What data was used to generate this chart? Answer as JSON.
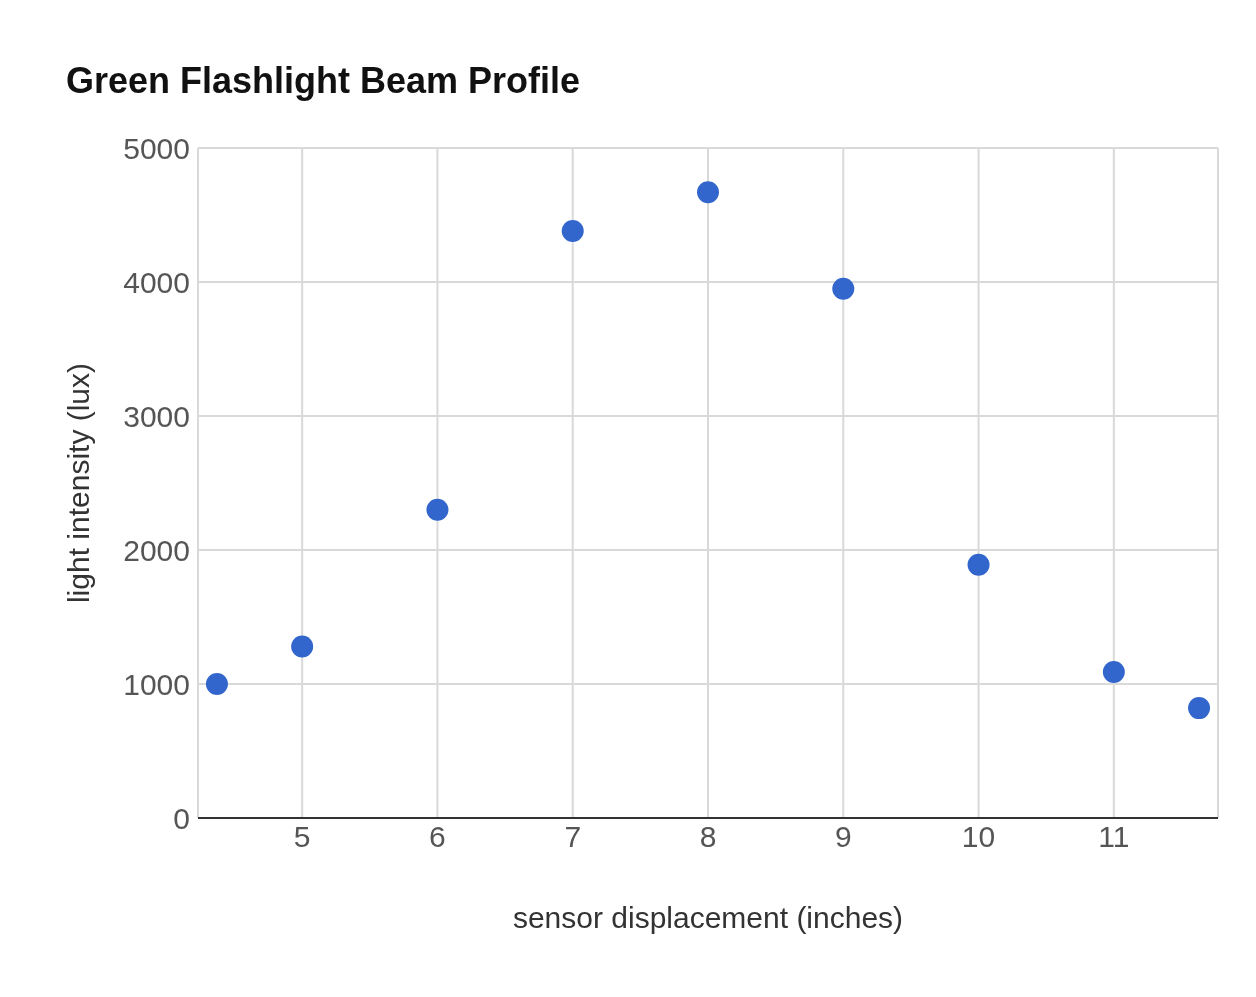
{
  "chart_data": {
    "type": "scatter",
    "title": "Green Flashlight Beam Profile",
    "xlabel": "sensor displacement (inches)",
    "ylabel": "light intensity (lux)",
    "x": [
      4.37,
      5,
      6,
      7,
      8,
      9,
      10,
      11,
      11.63
    ],
    "series": [
      {
        "color": "#3366cc",
        "values": [
          1000,
          1280,
          2300,
          4380,
          4670,
          3950,
          1890,
          1090,
          820
        ]
      }
    ],
    "xlim": [
      4.23,
      11.77
    ],
    "xticks": [
      5,
      6,
      7,
      8,
      9,
      10,
      11
    ],
    "ylim": [
      0,
      5000
    ],
    "yticks": [
      0,
      1000,
      2000,
      3000,
      4000,
      5000
    ],
    "grid": true,
    "marker": "circle",
    "legend": false
  }
}
